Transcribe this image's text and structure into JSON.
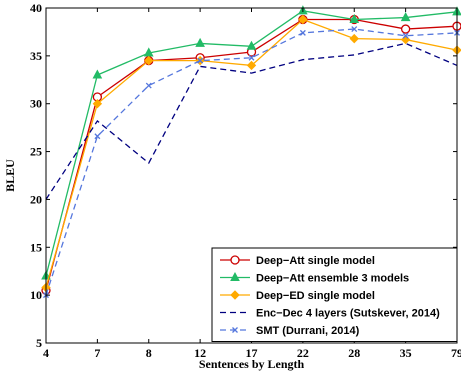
{
  "chart_data": {
    "type": "line",
    "xlabel": "Sentences by Length",
    "ylabel": "BLEU",
    "categories": [
      "4",
      "7",
      "8",
      "12",
      "17",
      "22",
      "28",
      "35",
      "79"
    ],
    "ylim": [
      5,
      40
    ],
    "yticks": [
      5,
      10,
      15,
      20,
      25,
      30,
      35,
      40
    ],
    "grid": false,
    "legend_position": "bottom-right",
    "series": [
      {
        "name": "Deep−Att single model",
        "color": "#cc0000",
        "marker": "circle",
        "dash": "solid",
        "values": [
          10.5,
          30.7,
          34.5,
          34.8,
          35.4,
          38.8,
          38.8,
          37.8,
          38.1
        ]
      },
      {
        "name": "Deep−Att ensemble 3 models",
        "color": "#22bb66",
        "marker": "triangle",
        "dash": "solid",
        "values": [
          12.0,
          33.0,
          35.3,
          36.3,
          36.0,
          39.7,
          38.8,
          39.0,
          39.6
        ]
      },
      {
        "name": "Deep−ED single model",
        "color": "#ffaa00",
        "marker": "diamond",
        "dash": "solid",
        "values": [
          10.8,
          30.0,
          34.5,
          34.5,
          34.0,
          38.8,
          36.8,
          36.7,
          35.6
        ]
      },
      {
        "name": "Enc−Dec 4 layers (Sutskever, 2014)",
        "color": "#000080",
        "marker": "none",
        "dash": "dashed",
        "values": [
          20.0,
          28.2,
          23.8,
          33.9,
          33.2,
          34.6,
          35.1,
          36.3,
          34.0
        ]
      },
      {
        "name": "SMT  (Durrani, 2014)",
        "color": "#5577dd",
        "marker": "x",
        "dash": "dashed",
        "values": [
          10.0,
          26.6,
          31.9,
          34.5,
          34.8,
          37.4,
          37.8,
          37.1,
          37.4
        ]
      }
    ]
  }
}
